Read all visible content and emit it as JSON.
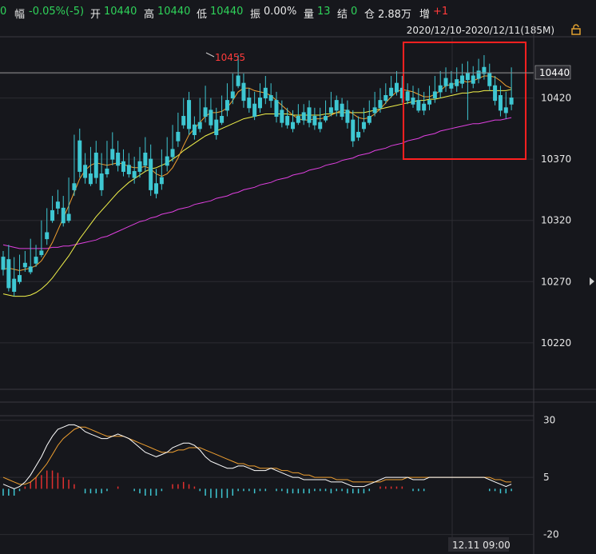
{
  "header": {
    "prefix": "0",
    "amp_label": "幅",
    "amp_value": "-0.05%(-5)",
    "open_label": "开",
    "open_value": "10440",
    "high_label": "高",
    "high_value": "10440",
    "low_label": "低",
    "low_value": "10440",
    "swing_label": "振",
    "swing_value": "0.00%",
    "vol_label": "量",
    "vol_value": "13",
    "settle_label": "结",
    "settle_value": "0",
    "oi_label": "仓",
    "oi_value": "2.88万",
    "inc_label": "增",
    "inc_value": "+1"
  },
  "range_label": "2020/12/10-2020/12/11(185M)",
  "high_marker": "10455",
  "current_price_tag": "10440",
  "time_label": "12.11 09:00",
  "colors": {
    "up": "#e0302f",
    "down": "#3ec7d2",
    "ma_short": "#f0a030",
    "ma_mid": "#f2f24a",
    "ma_long": "#e040e0",
    "macd_dif": "#ffffff",
    "macd_dea": "#f0a030",
    "highlight": "#ff2020"
  },
  "chart_data": [
    {
      "type": "candlestick",
      "title": "",
      "yticks": [
        10440,
        10420,
        10370,
        10320,
        10270,
        10220
      ],
      "ylim": [
        10182,
        10470
      ],
      "candles": [
        [
          10290,
          10295,
          10280,
          10275
        ],
        [
          10288,
          10300,
          10265,
          10262
        ],
        [
          10272,
          10290,
          10262,
          10258
        ],
        [
          10275,
          10292,
          10270,
          10268
        ],
        [
          10285,
          10295,
          10282,
          10278
        ],
        [
          10282,
          10305,
          10278,
          10276
        ],
        [
          10290,
          10300,
          10285,
          10282
        ],
        [
          10295,
          10320,
          10292,
          10290
        ],
        [
          10310,
          10330,
          10305,
          10300
        ],
        [
          10328,
          10340,
          10320,
          10318
        ],
        [
          10335,
          10345,
          10330,
          10325
        ],
        [
          10330,
          10340,
          10318,
          10315
        ],
        [
          10325,
          10355,
          10320,
          10318
        ],
        [
          10350,
          10390,
          10345,
          10340
        ],
        [
          10385,
          10395,
          10360,
          10355
        ],
        [
          10365,
          10375,
          10355,
          10350
        ],
        [
          10358,
          10380,
          10350,
          10348
        ],
        [
          10375,
          10385,
          10355,
          10350
        ],
        [
          10358,
          10375,
          10345,
          10340
        ],
        [
          10362,
          10385,
          10358,
          10355
        ],
        [
          10378,
          10392,
          10370,
          10365
        ],
        [
          10375,
          10385,
          10365,
          10360
        ],
        [
          10368,
          10378,
          10360,
          10356
        ],
        [
          10365,
          10375,
          10358,
          10355
        ],
        [
          10360,
          10372,
          10355,
          10350
        ],
        [
          10368,
          10380,
          10360,
          10355
        ],
        [
          10375,
          10388,
          10365,
          10360
        ],
        [
          10370,
          10382,
          10345,
          10340
        ],
        [
          10350,
          10362,
          10342,
          10338
        ],
        [
          10355,
          10378,
          10350,
          10345
        ],
        [
          10372,
          10388,
          10365,
          10360
        ],
        [
          10378,
          10398,
          10372,
          10368
        ],
        [
          10392,
          10408,
          10385,
          10380
        ],
        [
          10405,
          10420,
          10398,
          10395
        ],
        [
          10418,
          10425,
          10395,
          10390
        ],
        [
          10398,
          10405,
          10390,
          10386
        ],
        [
          10400,
          10420,
          10395,
          10392
        ],
        [
          10412,
          10430,
          10405,
          10400
        ],
        [
          10410,
          10420,
          10398,
          10395
        ],
        [
          10402,
          10412,
          10390,
          10386
        ],
        [
          10405,
          10422,
          10400,
          10398
        ],
        [
          10418,
          10432,
          10410,
          10405
        ],
        [
          10425,
          10440,
          10420,
          10415
        ],
        [
          10438,
          10455,
          10430,
          10428
        ],
        [
          10432,
          10440,
          10418,
          10412
        ],
        [
          10420,
          10428,
          10412,
          10408
        ],
        [
          10415,
          10425,
          10405,
          10402
        ],
        [
          10420,
          10432,
          10412,
          10408
        ],
        [
          10428,
          10438,
          10420,
          10415
        ],
        [
          10422,
          10432,
          10418,
          10412
        ],
        [
          10418,
          10425,
          10405,
          10400
        ],
        [
          10410,
          10418,
          10400,
          10396
        ],
        [
          10405,
          10412,
          10398,
          10395
        ],
        [
          10400,
          10410,
          10395,
          10392
        ],
        [
          10405,
          10415,
          10400,
          10398
        ],
        [
          10408,
          10415,
          10402,
          10398
        ],
        [
          10412,
          10418,
          10400,
          10396
        ],
        [
          10405,
          10412,
          10398,
          10394
        ],
        [
          10400,
          10412,
          10395,
          10392
        ],
        [
          10405,
          10418,
          10402,
          10400
        ],
        [
          10412,
          10425,
          10408,
          10405
        ],
        [
          10418,
          10422,
          10410,
          10405
        ],
        [
          10415,
          10420,
          10405,
          10402
        ],
        [
          10410,
          10418,
          10400,
          10395
        ],
        [
          10402,
          10410,
          10385,
          10380
        ],
        [
          10392,
          10405,
          10388,
          10385
        ],
        [
          10400,
          10412,
          10395,
          10392
        ],
        [
          10405,
          10418,
          10400,
          10398
        ],
        [
          10412,
          10425,
          10408,
          10405
        ],
        [
          10418,
          10428,
          10412,
          10408
        ],
        [
          10422,
          10432,
          10418,
          10415
        ],
        [
          10428,
          10438,
          10422,
          10420
        ],
        [
          10432,
          10442,
          10425,
          10422
        ],
        [
          10428,
          10438,
          10420,
          10416
        ],
        [
          10425,
          10432,
          10418,
          10415
        ],
        [
          10420,
          10430,
          10415,
          10412
        ],
        [
          10418,
          10428,
          10410,
          10408
        ],
        [
          10415,
          10425,
          10410,
          10406
        ],
        [
          10418,
          10430,
          10415,
          10410
        ],
        [
          10425,
          10438,
          10420,
          10416
        ],
        [
          10430,
          10442,
          10425,
          10420
        ],
        [
          10436,
          10445,
          10430,
          10425
        ],
        [
          10432,
          10442,
          10428,
          10424
        ],
        [
          10435,
          10445,
          10430,
          10425
        ],
        [
          10438,
          10448,
          10432,
          10428
        ],
        [
          10440,
          10450,
          10435,
          10402
        ],
        [
          10438,
          10446,
          10432,
          10428
        ],
        [
          10442,
          10452,
          10436,
          10432
        ],
        [
          10445,
          10455,
          10440,
          10435
        ],
        [
          10440,
          10448,
          10430,
          10426
        ],
        [
          10430,
          10438,
          10418,
          10414
        ],
        [
          10422,
          10430,
          10410,
          10405
        ],
        [
          10412,
          10425,
          10408,
          10403
        ],
        [
          10420,
          10445,
          10415,
          10410
        ]
      ],
      "ma_short": [
        10280,
        10281,
        10280,
        10279,
        10280,
        10281,
        10283,
        10287,
        10294,
        10302,
        10312,
        10322,
        10332,
        10343,
        10354,
        10361,
        10365,
        10367,
        10366,
        10365,
        10366,
        10367,
        10366,
        10364,
        10363,
        10363,
        10364,
        10362,
        10358,
        10356,
        10358,
        10363,
        10371,
        10381,
        10390,
        10395,
        10400,
        10405,
        10408,
        10408,
        10409,
        10412,
        10418,
        10425,
        10428,
        10428,
        10426,
        10425,
        10424,
        10422,
        10418,
        10414,
        10410,
        10406,
        10403,
        10402,
        10402,
        10403,
        10403,
        10404,
        10406,
        10408,
        10410,
        10410,
        10407,
        10404,
        10403,
        10404,
        10407,
        10411,
        10416,
        10421,
        10425,
        10427,
        10426,
        10425,
        10423,
        10421,
        10421,
        10423,
        10426,
        10430,
        10431,
        10432,
        10434,
        10433,
        10434,
        10436,
        10438,
        10438,
        10437,
        10434,
        10430,
        10428
      ],
      "ma_mid": [
        10260,
        10259,
        10258,
        10258,
        10258,
        10259,
        10261,
        10264,
        10268,
        10273,
        10279,
        10285,
        10291,
        10298,
        10305,
        10311,
        10317,
        10323,
        10328,
        10333,
        10338,
        10343,
        10347,
        10351,
        10354,
        10357,
        10360,
        10362,
        10363,
        10365,
        10367,
        10370,
        10373,
        10377,
        10380,
        10383,
        10386,
        10389,
        10391,
        10393,
        10395,
        10397,
        10399,
        10401,
        10403,
        10404,
        10405,
        10406,
        10407,
        10407,
        10407,
        10407,
        10407,
        10406,
        10406,
        10406,
        10406,
        10406,
        10406,
        10407,
        10407,
        10408,
        10408,
        10408,
        10408,
        10408,
        10408,
        10409,
        10410,
        10411,
        10412,
        10413,
        10414,
        10415,
        10416,
        10417,
        10418,
        10418,
        10419,
        10419,
        10420,
        10421,
        10422,
        10423,
        10424,
        10424,
        10425,
        10425,
        10426,
        10426,
        10426,
        10426,
        10426,
        10427
      ],
      "ma_long": [
        10300,
        10299,
        10298,
        10297,
        10297,
        10297,
        10297,
        10297,
        10297,
        10298,
        10298,
        10299,
        10299,
        10300,
        10301,
        10302,
        10303,
        10304,
        10306,
        10307,
        10309,
        10311,
        10313,
        10315,
        10317,
        10319,
        10320,
        10322,
        10323,
        10325,
        10326,
        10327,
        10329,
        10330,
        10331,
        10333,
        10334,
        10335,
        10336,
        10338,
        10339,
        10340,
        10342,
        10343,
        10345,
        10346,
        10347,
        10349,
        10350,
        10351,
        10353,
        10354,
        10355,
        10357,
        10358,
        10359,
        10361,
        10362,
        10363,
        10365,
        10366,
        10367,
        10369,
        10370,
        10371,
        10373,
        10374,
        10375,
        10377,
        10378,
        10379,
        10381,
        10382,
        10383,
        10385,
        10386,
        10387,
        10389,
        10390,
        10391,
        10393,
        10394,
        10395,
        10396,
        10397,
        10398,
        10399,
        10399,
        10400,
        10401,
        10402,
        10402,
        10403,
        10404
      ]
    },
    {
      "type": "macd",
      "title": "",
      "yticks": [
        30,
        5,
        -20
      ],
      "ylim": [
        -24,
        32
      ],
      "dif": [
        2,
        1,
        0,
        1,
        3,
        6,
        10,
        14,
        19,
        23,
        26,
        27,
        28,
        28,
        27,
        25,
        24,
        23,
        22,
        22,
        23,
        24,
        23,
        22,
        20,
        18,
        16,
        15,
        14,
        15,
        16,
        18,
        19,
        20,
        20,
        19,
        17,
        14,
        12,
        11,
        10,
        9,
        9,
        10,
        10,
        9,
        8,
        8,
        8,
        9,
        8,
        7,
        6,
        5,
        5,
        4,
        4,
        4,
        4,
        4,
        3,
        3,
        3,
        2,
        1,
        1,
        1,
        2,
        3,
        4,
        5,
        5,
        5,
        5,
        5,
        4,
        4,
        4,
        5,
        5,
        5,
        5,
        5,
        5,
        5,
        5,
        5,
        5,
        5,
        4,
        3,
        2,
        1,
        2
      ],
      "dea": [
        5,
        4,
        3,
        2,
        2,
        3,
        5,
        8,
        11,
        15,
        19,
        22,
        24,
        26,
        27,
        27,
        26,
        25,
        24,
        23,
        23,
        23,
        23,
        22,
        21,
        20,
        19,
        18,
        17,
        16,
        16,
        16,
        17,
        17,
        18,
        18,
        18,
        17,
        16,
        15,
        14,
        13,
        12,
        11,
        11,
        10,
        10,
        9,
        9,
        9,
        9,
        8,
        8,
        7,
        7,
        6,
        6,
        5,
        5,
        5,
        5,
        4,
        4,
        4,
        3,
        3,
        3,
        3,
        3,
        3,
        4,
        4,
        4,
        4,
        5,
        5,
        5,
        5,
        5,
        5,
        5,
        5,
        5,
        5,
        5,
        5,
        5,
        5,
        5,
        5,
        4,
        4,
        3,
        3
      ],
      "hist": [
        -3,
        -3,
        -3,
        -1,
        1,
        3,
        5,
        6,
        8,
        8,
        7,
        5,
        4,
        2,
        0,
        -2,
        -2,
        -2,
        -2,
        -1,
        0,
        1,
        0,
        0,
        -1,
        -2,
        -3,
        -3,
        -3,
        -1,
        0,
        2,
        2,
        3,
        2,
        1,
        -1,
        -3,
        -4,
        -4,
        -4,
        -4,
        -3,
        -1,
        -1,
        -1,
        -2,
        -1,
        -1,
        0,
        -1,
        -1,
        -2,
        -2,
        -2,
        -2,
        -2,
        -1,
        -1,
        -1,
        -2,
        -1,
        -1,
        -2,
        -2,
        -2,
        -2,
        -1,
        0,
        1,
        1,
        1,
        1,
        1,
        0,
        -1,
        -1,
        -1,
        0,
        0,
        0,
        0,
        0,
        0,
        0,
        0,
        0,
        0,
        0,
        -1,
        -1,
        -2,
        -2,
        -1
      ]
    }
  ]
}
